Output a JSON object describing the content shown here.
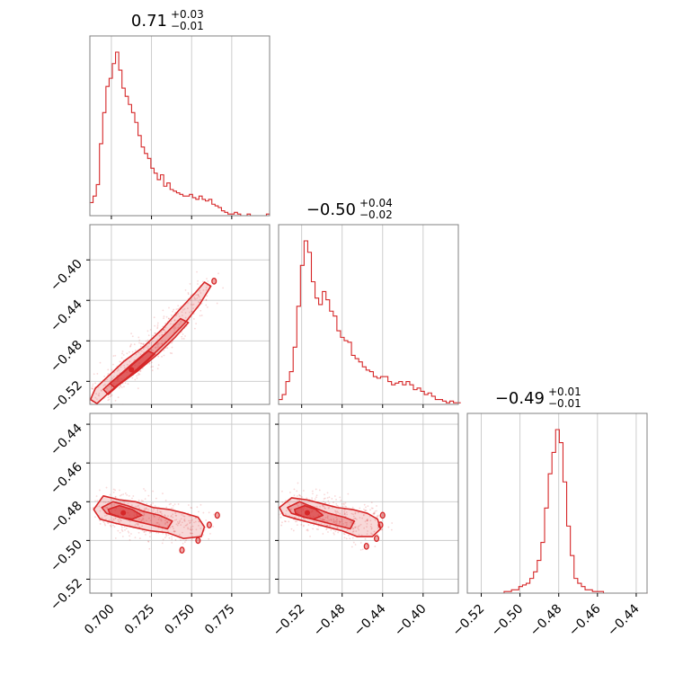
{
  "chart_data": {
    "type": "corner",
    "color": "#d62728",
    "grid": true,
    "parameters": [
      {
        "title_value": "0.71",
        "title_plus": "+0.03",
        "title_minus": "−0.01",
        "range": [
          0.6866,
          0.7986
        ],
        "ticks": [
          {
            "v": 0.7,
            "label": "0.700"
          },
          {
            "v": 0.725,
            "label": "0.725"
          },
          {
            "v": 0.75,
            "label": "0.750"
          },
          {
            "v": 0.775,
            "label": "0.775"
          }
        ]
      },
      {
        "title_value": "−0.50",
        "title_plus": "+0.04",
        "title_minus": "−0.02",
        "range": [
          -0.5428,
          -0.3652
        ],
        "ticks": [
          {
            "v": -0.52,
            "label": "−0.52"
          },
          {
            "v": -0.48,
            "label": "−0.48"
          },
          {
            "v": -0.44,
            "label": "−0.44"
          },
          {
            "v": -0.4,
            "label": "−0.40"
          }
        ]
      },
      {
        "title_value": "−0.49",
        "title_plus": "+0.01",
        "title_minus": "−0.01",
        "range": [
          -0.5272,
          -0.4344
        ],
        "ticks": [
          {
            "v": -0.52,
            "label": "−0.52"
          },
          {
            "v": -0.5,
            "label": "−0.50"
          },
          {
            "v": -0.48,
            "label": "−0.48"
          },
          {
            "v": -0.46,
            "label": "−0.46"
          },
          {
            "v": -0.44,
            "label": "−0.44"
          }
        ]
      }
    ],
    "histograms": [
      {
        "param": 0,
        "lo": 0.6866,
        "bin_width": 0.002,
        "heights": [
          0.08,
          0.12,
          0.19,
          0.44,
          0.63,
          0.79,
          0.84,
          0.93,
          1.0,
          0.89,
          0.78,
          0.73,
          0.68,
          0.63,
          0.57,
          0.49,
          0.42,
          0.38,
          0.35,
          0.29,
          0.26,
          0.22,
          0.25,
          0.18,
          0.2,
          0.16,
          0.15,
          0.14,
          0.13,
          0.12,
          0.12,
          0.13,
          0.11,
          0.1,
          0.12,
          0.1,
          0.09,
          0.1,
          0.07,
          0.06,
          0.05,
          0.03,
          0.02,
          0.01,
          0.01,
          0.02,
          0.01,
          0.0,
          0.0,
          0.01,
          0.0,
          0.0,
          0.0,
          0.0,
          0.0,
          0.01
        ]
      },
      {
        "param": 1,
        "lo": -0.5428,
        "bin_width": 0.0036,
        "heights": [
          0.03,
          0.06,
          0.14,
          0.2,
          0.35,
          0.6,
          0.85,
          1.0,
          0.93,
          0.75,
          0.65,
          0.61,
          0.69,
          0.64,
          0.57,
          0.54,
          0.45,
          0.41,
          0.39,
          0.38,
          0.3,
          0.28,
          0.26,
          0.23,
          0.21,
          0.2,
          0.17,
          0.16,
          0.17,
          0.17,
          0.14,
          0.12,
          0.13,
          0.14,
          0.12,
          0.14,
          0.12,
          0.09,
          0.1,
          0.08,
          0.06,
          0.07,
          0.05,
          0.03,
          0.03,
          0.02,
          0.01,
          0.02,
          0.01,
          0.01
        ]
      },
      {
        "param": 2,
        "lo": -0.5272,
        "bin_width": 0.0019,
        "heights": [
          0.0,
          0.0,
          0.0,
          0.0,
          0.0,
          0.0,
          0.0,
          0.0,
          0.0,
          0.0,
          0.01,
          0.01,
          0.02,
          0.02,
          0.04,
          0.05,
          0.06,
          0.09,
          0.13,
          0.2,
          0.31,
          0.52,
          0.73,
          0.86,
          1.0,
          0.92,
          0.68,
          0.41,
          0.23,
          0.09,
          0.06,
          0.04,
          0.02,
          0.02,
          0.01,
          0.01,
          0.01,
          0.0,
          0.0,
          0.0,
          0.0,
          0.0,
          0.0,
          0.0,
          0.0,
          0.0,
          0.0,
          0.0,
          0.0
        ]
      }
    ],
    "pairs": [
      {
        "x_param": 0,
        "y_param": 1,
        "y_ticks_label": true
      },
      {
        "x_param": 0,
        "y_param": 2,
        "y_ticks_label": true
      },
      {
        "x_param": 1,
        "y_param": 2,
        "y_ticks_label": false
      }
    ],
    "contours": [
      {
        "x_param": 0,
        "y_param": 1,
        "level": "outer",
        "points": [
          [
            0.687,
            -0.538
          ],
          [
            0.69,
            -0.527
          ],
          [
            0.698,
            -0.515
          ],
          [
            0.708,
            -0.5
          ],
          [
            0.72,
            -0.486
          ],
          [
            0.732,
            -0.468
          ],
          [
            0.742,
            -0.45
          ],
          [
            0.752,
            -0.433
          ],
          [
            0.758,
            -0.422
          ],
          [
            0.762,
            -0.426
          ],
          [
            0.755,
            -0.444
          ],
          [
            0.746,
            -0.462
          ],
          [
            0.735,
            -0.48
          ],
          [
            0.723,
            -0.498
          ],
          [
            0.711,
            -0.515
          ],
          [
            0.7,
            -0.529
          ],
          [
            0.691,
            -0.542
          ]
        ]
      },
      {
        "x_param": 0,
        "y_param": 1,
        "level": "middle",
        "points": [
          [
            0.695,
            -0.528
          ],
          [
            0.702,
            -0.518
          ],
          [
            0.712,
            -0.504
          ],
          [
            0.724,
            -0.488
          ],
          [
            0.735,
            -0.471
          ],
          [
            0.743,
            -0.458
          ],
          [
            0.748,
            -0.462
          ],
          [
            0.74,
            -0.476
          ],
          [
            0.729,
            -0.493
          ],
          [
            0.717,
            -0.509
          ],
          [
            0.705,
            -0.523
          ],
          [
            0.698,
            -0.533
          ]
        ]
      },
      {
        "x_param": 0,
        "y_param": 1,
        "level": "inner",
        "points": [
          [
            0.699,
            -0.522
          ],
          [
            0.706,
            -0.513
          ],
          [
            0.715,
            -0.501
          ],
          [
            0.723,
            -0.49
          ],
          [
            0.727,
            -0.493
          ],
          [
            0.719,
            -0.505
          ],
          [
            0.709,
            -0.518
          ],
          [
            0.702,
            -0.526
          ]
        ]
      },
      {
        "x_param": 0,
        "y_param": 2,
        "level": "outer",
        "points": [
          [
            0.689,
            -0.484
          ],
          [
            0.695,
            -0.477
          ],
          [
            0.705,
            -0.479
          ],
          [
            0.715,
            -0.48
          ],
          [
            0.726,
            -0.483
          ],
          [
            0.736,
            -0.484
          ],
          [
            0.746,
            -0.486
          ],
          [
            0.754,
            -0.488
          ],
          [
            0.758,
            -0.493
          ],
          [
            0.756,
            -0.498
          ],
          [
            0.745,
            -0.499
          ],
          [
            0.735,
            -0.496
          ],
          [
            0.724,
            -0.495
          ],
          [
            0.713,
            -0.493
          ],
          [
            0.702,
            -0.491
          ],
          [
            0.693,
            -0.489
          ]
        ]
      },
      {
        "x_param": 0,
        "y_param": 2,
        "level": "middle",
        "points": [
          [
            0.694,
            -0.483
          ],
          [
            0.701,
            -0.48
          ],
          [
            0.71,
            -0.482
          ],
          [
            0.72,
            -0.485
          ],
          [
            0.73,
            -0.487
          ],
          [
            0.738,
            -0.49
          ],
          [
            0.735,
            -0.494
          ],
          [
            0.725,
            -0.492
          ],
          [
            0.715,
            -0.49
          ],
          [
            0.705,
            -0.488
          ],
          [
            0.697,
            -0.486
          ]
        ]
      },
      {
        "x_param": 0,
        "y_param": 2,
        "level": "inner",
        "points": [
          [
            0.698,
            -0.484
          ],
          [
            0.705,
            -0.482
          ],
          [
            0.713,
            -0.484
          ],
          [
            0.719,
            -0.487
          ],
          [
            0.713,
            -0.489
          ],
          [
            0.705,
            -0.488
          ],
          [
            0.699,
            -0.486
          ]
        ]
      },
      {
        "x_param": 1,
        "y_param": 2,
        "level": "outer",
        "points": [
          [
            -0.542,
            -0.483
          ],
          [
            -0.53,
            -0.478
          ],
          [
            -0.515,
            -0.479
          ],
          [
            -0.5,
            -0.481
          ],
          [
            -0.485,
            -0.483
          ],
          [
            -0.47,
            -0.484
          ],
          [
            -0.455,
            -0.486
          ],
          [
            -0.445,
            -0.489
          ],
          [
            -0.442,
            -0.494
          ],
          [
            -0.45,
            -0.498
          ],
          [
            -0.465,
            -0.498
          ],
          [
            -0.48,
            -0.495
          ],
          [
            -0.495,
            -0.493
          ],
          [
            -0.51,
            -0.491
          ],
          [
            -0.525,
            -0.489
          ],
          [
            -0.538,
            -0.487
          ]
        ]
      },
      {
        "x_param": 1,
        "y_param": 2,
        "level": "middle",
        "points": [
          [
            -0.534,
            -0.483
          ],
          [
            -0.522,
            -0.48
          ],
          [
            -0.508,
            -0.483
          ],
          [
            -0.493,
            -0.486
          ],
          [
            -0.478,
            -0.488
          ],
          [
            -0.468,
            -0.49
          ],
          [
            -0.472,
            -0.494
          ],
          [
            -0.487,
            -0.492
          ],
          [
            -0.502,
            -0.49
          ],
          [
            -0.517,
            -0.488
          ],
          [
            -0.53,
            -0.486
          ]
        ]
      },
      {
        "x_param": 1,
        "y_param": 2,
        "level": "inner",
        "points": [
          [
            -0.527,
            -0.484
          ],
          [
            -0.517,
            -0.482
          ],
          [
            -0.506,
            -0.484
          ],
          [
            -0.499,
            -0.487
          ],
          [
            -0.508,
            -0.489
          ],
          [
            -0.518,
            -0.488
          ],
          [
            -0.526,
            -0.486
          ]
        ]
      }
    ],
    "blobs": [
      {
        "x_param": 0,
        "y_param": 1,
        "x": 0.764,
        "y": -0.421
      },
      {
        "x_param": 0,
        "y_param": 2,
        "x": 0.766,
        "y": -0.487
      },
      {
        "x_param": 0,
        "y_param": 2,
        "x": 0.761,
        "y": -0.492
      },
      {
        "x_param": 0,
        "y_param": 2,
        "x": 0.754,
        "y": -0.5
      },
      {
        "x_param": 0,
        "y_param": 2,
        "x": 0.744,
        "y": -0.505
      },
      {
        "x_param": 1,
        "y_param": 2,
        "x": -0.44,
        "y": -0.487
      },
      {
        "x_param": 1,
        "y_param": 2,
        "x": -0.442,
        "y": -0.492
      },
      {
        "x_param": 1,
        "y_param": 2,
        "x": -0.446,
        "y": -0.499
      },
      {
        "x_param": 1,
        "y_param": 2,
        "x": -0.456,
        "y": -0.503
      }
    ]
  }
}
